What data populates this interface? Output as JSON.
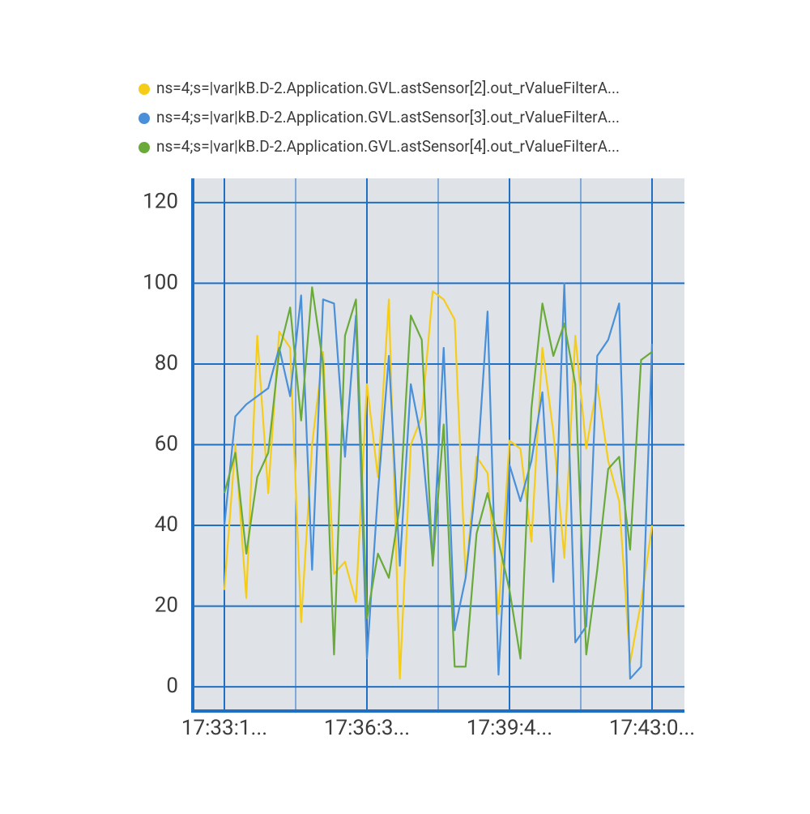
{
  "chart_data": {
    "type": "line",
    "categories": [
      "17:33:1...",
      null,
      null,
      null,
      null,
      null,
      null,
      null,
      null,
      null,
      null,
      null,
      null,
      "17:36:3...",
      null,
      null,
      null,
      null,
      null,
      null,
      null,
      null,
      null,
      null,
      null,
      null,
      "17:39:4...",
      null,
      null,
      null,
      null,
      null,
      null,
      null,
      null,
      null,
      null,
      null,
      null,
      "17:43:0..."
    ],
    "ylim": [
      -6,
      126
    ],
    "yticks": [
      0,
      20,
      40,
      60,
      80,
      100,
      120
    ],
    "grid": true,
    "legend": "top",
    "series": [
      {
        "name": "ns=4;s=|var|kB.D-2.Application.GVL.astSensor[2].out_rValueFilterA...",
        "color": "#f5cd19",
        "values": [
          24,
          60,
          22,
          87,
          48,
          88,
          84,
          16,
          60,
          83,
          28,
          31,
          21,
          75,
          52,
          96,
          2,
          60,
          67,
          98,
          96,
          91,
          27,
          57,
          53,
          18,
          61,
          59,
          36,
          84,
          63,
          32,
          87,
          59,
          75,
          56,
          46,
          6,
          21,
          40
        ]
      },
      {
        "name": "ns=4;s=|var|kB.D-2.Application.GVL.astSensor[3].out_rValueFilterA...",
        "color": "#4a90d9",
        "values": [
          40,
          67,
          70,
          72,
          74,
          84,
          72,
          97,
          29,
          96,
          95,
          57,
          92,
          7,
          48,
          82,
          30,
          75,
          61,
          31,
          84,
          14,
          27,
          52,
          93,
          3,
          55,
          46,
          56,
          73,
          26,
          100,
          11,
          15,
          82,
          86,
          95,
          2,
          5,
          85
        ]
      },
      {
        "name": "ns=4;s=|var|kB.D-2.Application.GVL.astSensor[4].out_rValueFilterA...",
        "color": "#6aaa3a",
        "values": [
          48,
          58,
          33,
          52,
          58,
          83,
          94,
          66,
          99,
          80,
          8,
          87,
          96,
          17,
          33,
          27,
          45,
          92,
          86,
          30,
          65,
          5,
          5,
          38,
          48,
          36,
          24,
          7,
          69,
          95,
          82,
          90,
          75,
          8,
          29,
          54,
          57,
          34,
          81,
          83
        ]
      }
    ]
  }
}
